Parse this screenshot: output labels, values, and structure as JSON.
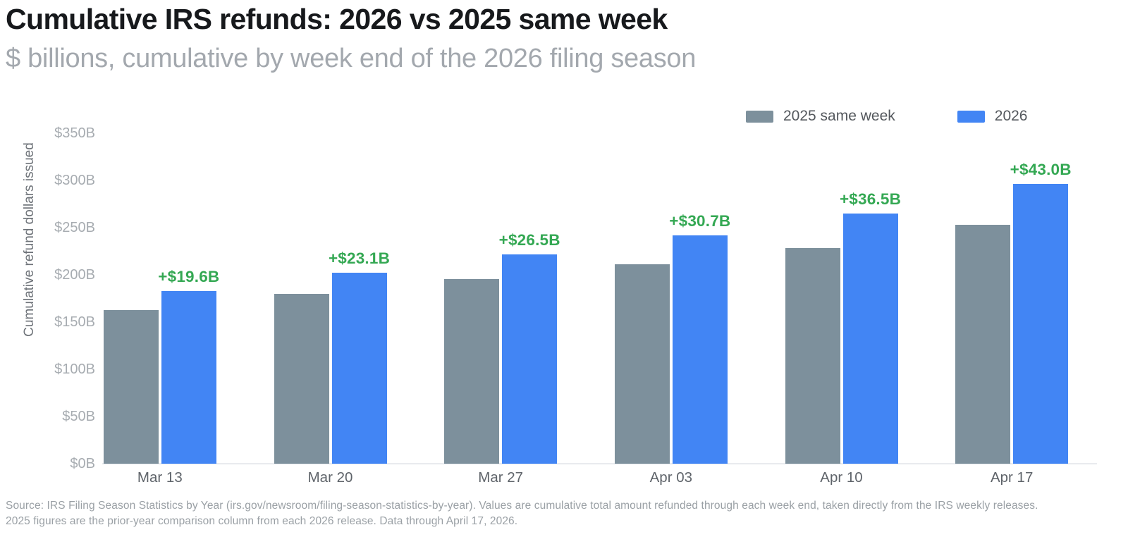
{
  "header": {
    "title": "Cumulative IRS refunds: 2026 vs 2025 same week",
    "subtitle": "$ billions, cumulative by week end of the 2026 filing season"
  },
  "chart_data": {
    "type": "bar",
    "title": "Cumulative IRS refunds: 2026 vs 2025 same week",
    "subtitle": "$ billions, cumulative by week end of the 2026 filing season",
    "xlabel": "",
    "ylabel": "Cumulative refund dollars issued",
    "categories": [
      "Mar 13",
      "Mar 20",
      "Mar 27",
      "Apr 03",
      "Apr 10",
      "Apr 17"
    ],
    "series": [
      {
        "name": "2025 same week",
        "color": "#7d909c",
        "values": [
          163.0,
          179.5,
          195.3,
          211.1,
          228.7,
          253.1
        ]
      },
      {
        "name": "2026",
        "color": "#4285f4",
        "values": [
          182.6,
          202.6,
          221.8,
          241.8,
          265.2,
          296.1
        ]
      }
    ],
    "diff_labels": [
      "+$19.6B",
      "+$23.1B",
      "+$26.5B",
      "+$30.7B",
      "+$36.5B",
      "+$43.0B"
    ],
    "diff_color": "#34a853",
    "y_ticks": [
      "$0B",
      "$50B",
      "$100B",
      "$150B",
      "$200B",
      "$250B",
      "$300B",
      "$350B"
    ],
    "y_tick_values": [
      0,
      50,
      100,
      150,
      200,
      250,
      300,
      350
    ],
    "ylim": [
      0,
      350
    ],
    "grid": false,
    "legend_position": "top-right"
  },
  "footer": {
    "line1": "Source: IRS Filing Season Statistics by Year (irs.gov/newsroom/filing-season-statistics-by-year). Values are cumulative total amount refunded through each week end, taken directly from the IRS weekly releases.",
    "line2": "2025 figures are the prior-year comparison column from each 2026 release. Data through April 17, 2026."
  }
}
